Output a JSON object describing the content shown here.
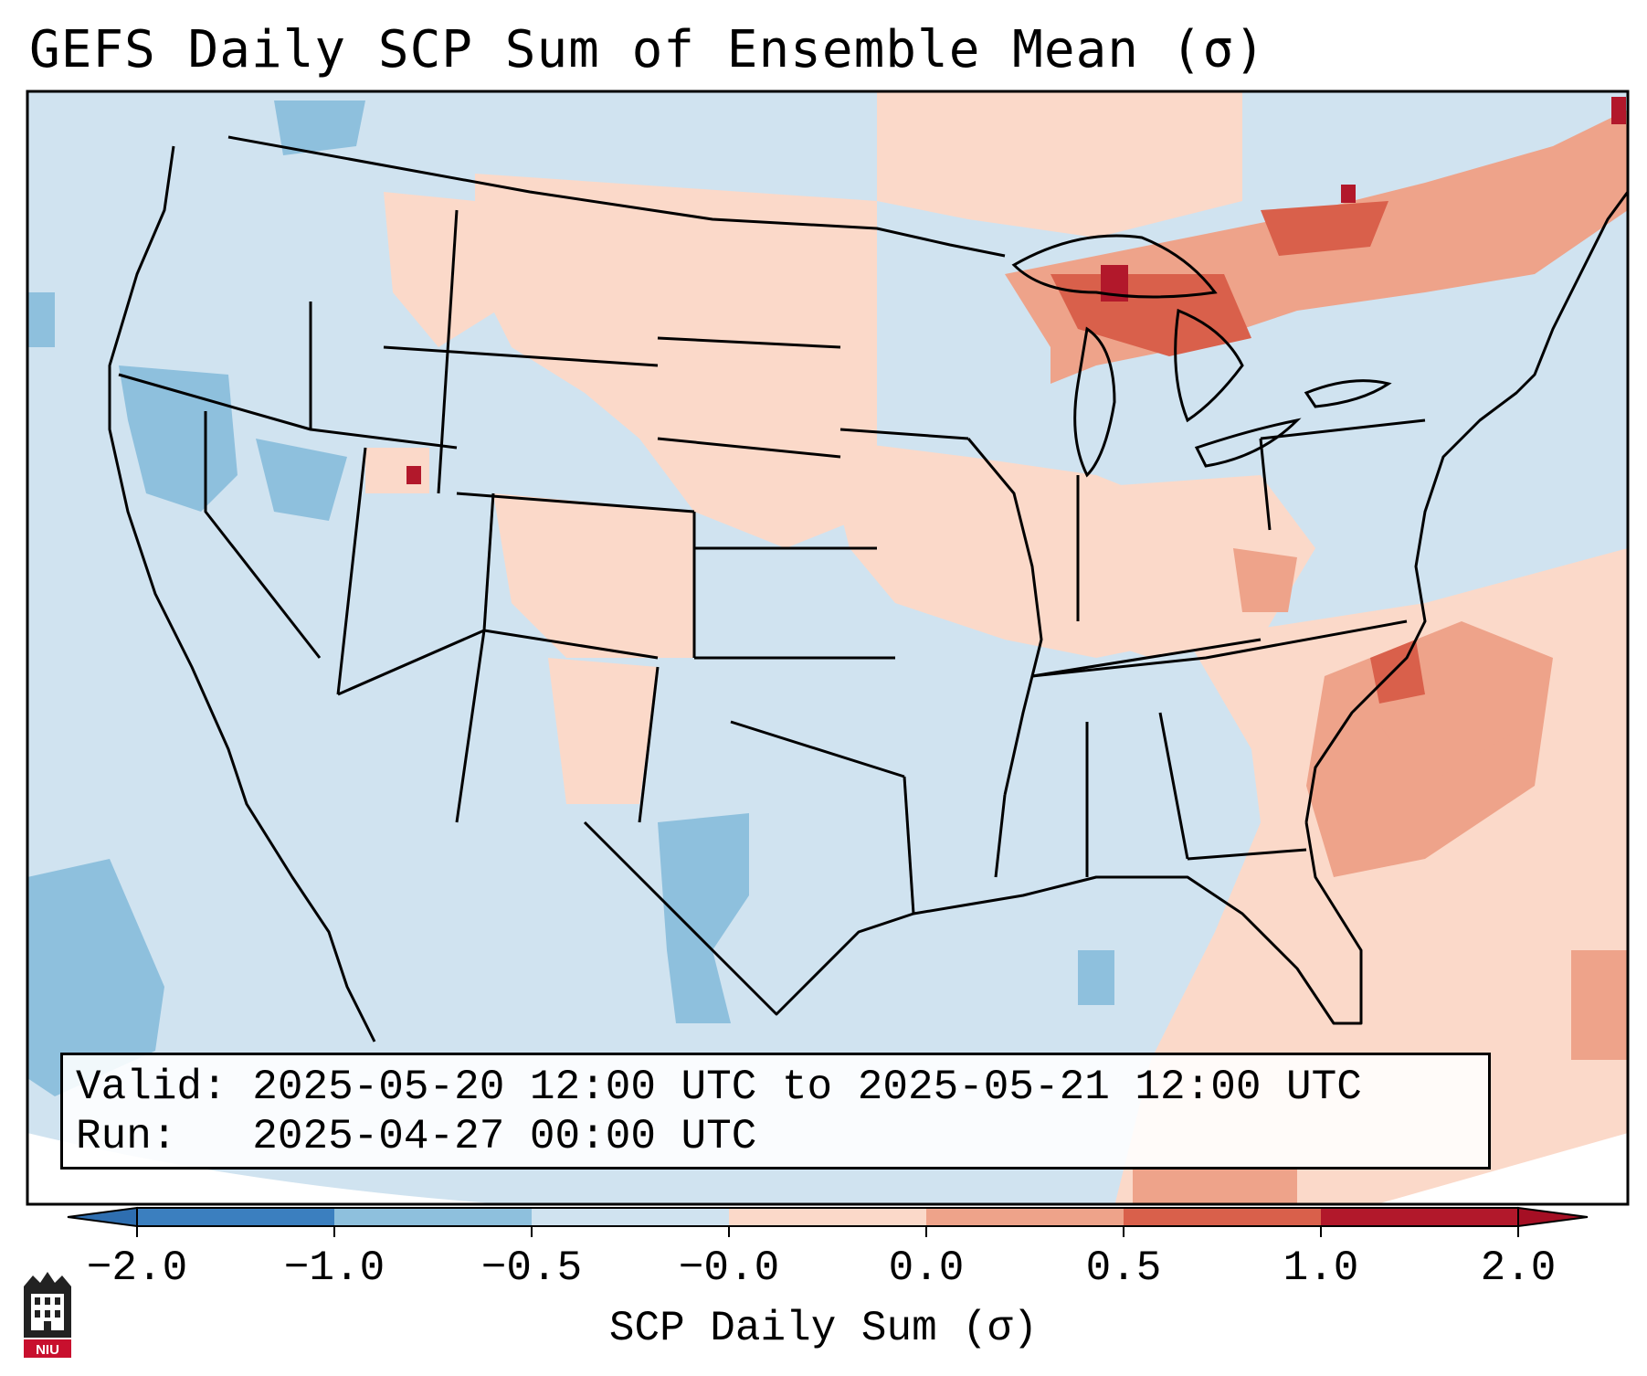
{
  "title": "GEFS Daily SCP Sum of Ensemble Mean (σ)",
  "map": {
    "projection": "conic",
    "region": "Contiguous United States",
    "background_fill": "#d0e3f0",
    "anomaly_areas": [
      {
        "area": "Great Lakes / Upper Michigan",
        "level": 1.0
      },
      {
        "area": "Southern Ontario / Quebec",
        "level": 0.5
      },
      {
        "area": "Southeast U.S. coast and Atlantic",
        "level": 0.5
      },
      {
        "area": "Ohio Valley / Appalachians",
        "level": 0.0
      },
      {
        "area": "Northern Plains",
        "level": 0.0
      },
      {
        "area": "Central Rockies / Colorado",
        "level": 0.0
      },
      {
        "area": "Pacific Northwest / Nevada",
        "level": -0.5
      },
      {
        "area": "Central Texas",
        "level": -0.5
      }
    ]
  },
  "info": {
    "valid_label": "Valid:",
    "valid_value": "2025-05-20 12:00 UTC to 2025-05-21 12:00 UTC",
    "run_label": "Run:",
    "run_value": "2025-04-27 00:00 UTC"
  },
  "colorbar": {
    "label": "SCP Daily Sum (σ)",
    "ticks": [
      "−2.0",
      "−1.0",
      "−0.5",
      "−0.0",
      "0.0",
      "0.5",
      "1.0",
      "2.0"
    ],
    "colors": [
      "#3b7fbf",
      "#8ec0dd",
      "#d0e3f0",
      "#fbd9c9",
      "#eea38a",
      "#d9604b",
      "#b2182b"
    ],
    "under_color": "#2e6eb0",
    "over_color": "#a50f24"
  },
  "logo": {
    "text": "NIU",
    "color": "#c8102e"
  },
  "icons": {
    "logo": "niu-building-icon"
  }
}
